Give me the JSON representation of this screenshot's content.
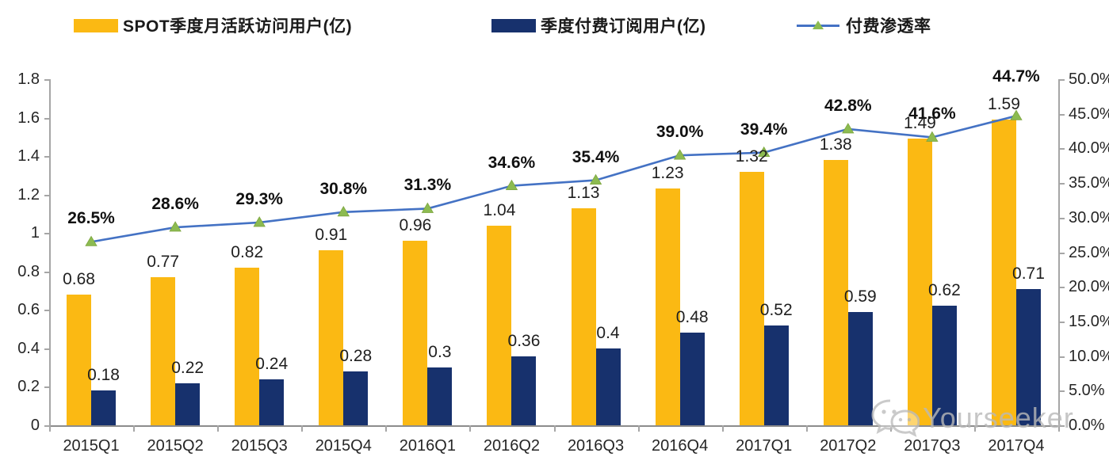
{
  "legend": [
    {
      "id": "mau",
      "label": "SPOT季度月活跃访问用户(亿)",
      "swatch": "bar",
      "color": "#FBB913"
    },
    {
      "id": "subs",
      "label": "季度付费订阅用户(亿)",
      "swatch": "bar",
      "color": "#17316D"
    },
    {
      "id": "penetration",
      "label": "付费渗透率",
      "swatch": "line",
      "color": "#4472C4",
      "marker_color": "#8CBB51"
    }
  ],
  "watermark": {
    "text": "Yourseeker",
    "icon": "wechat-icon"
  },
  "chart_data": {
    "type": "bar",
    "subtype": "grouped bars with secondary-axis line",
    "categories": [
      "2015Q1",
      "2015Q2",
      "2015Q3",
      "2015Q4",
      "2016Q1",
      "2016Q2",
      "2016Q3",
      "2016Q4",
      "2017Q1",
      "2017Q2",
      "2017Q3",
      "2017Q4"
    ],
    "series": [
      {
        "name": "SPOT季度月活跃访问用户(亿)",
        "type": "bar",
        "axis": "left",
        "color": "#FBB913",
        "values": [
          0.68,
          0.77,
          0.82,
          0.91,
          0.96,
          1.04,
          1.13,
          1.23,
          1.32,
          1.38,
          1.49,
          1.59
        ],
        "labels": [
          "0.68",
          "0.77",
          "0.82",
          "0.91",
          "0.96",
          "1.04",
          "1.13",
          "1.23",
          "1.32",
          "1.38",
          "1.49",
          "1.59"
        ]
      },
      {
        "name": "季度付费订阅用户(亿)",
        "type": "bar",
        "axis": "left",
        "color": "#17316D",
        "values": [
          0.18,
          0.22,
          0.24,
          0.28,
          0.3,
          0.36,
          0.4,
          0.48,
          0.52,
          0.59,
          0.62,
          0.71
        ],
        "labels": [
          "0.18",
          "0.22",
          "0.24",
          "0.28",
          "0.3",
          "0.36",
          "0.4",
          "0.48",
          "0.52",
          "0.59",
          "0.62",
          "0.71"
        ]
      },
      {
        "name": "付费渗透率",
        "type": "line",
        "axis": "right",
        "color": "#4472C4",
        "marker": "triangle",
        "marker_color": "#8CBB51",
        "values": [
          26.5,
          28.6,
          29.3,
          30.8,
          31.3,
          34.6,
          35.4,
          39.0,
          39.4,
          42.8,
          41.6,
          44.7
        ],
        "labels": [
          "26.5%",
          "28.6%",
          "29.3%",
          "30.8%",
          "31.3%",
          "34.6%",
          "35.4%",
          "39.0%",
          "39.4%",
          "42.8%",
          "41.6%",
          "44.7%"
        ]
      }
    ],
    "left_axis": {
      "min": 0,
      "max": 1.8,
      "ticks": [
        "1.8",
        "1.6",
        "1.4",
        "1.2",
        "1",
        "0.8",
        "0.6",
        "0.4",
        "0.2",
        "0"
      ]
    },
    "right_axis": {
      "min": 0,
      "max": 50,
      "ticks": [
        "50.0%",
        "45.0%",
        "40.0%",
        "35.0%",
        "30.0%",
        "25.0%",
        "20.0%",
        "15.0%",
        "10.0%",
        "5.0%",
        "0.0%"
      ]
    },
    "grid": false,
    "legend_position": "top",
    "title": ""
  }
}
